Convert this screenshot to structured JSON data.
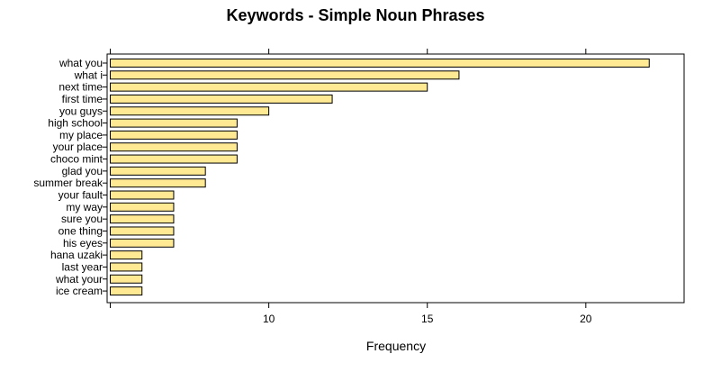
{
  "chart_data": {
    "type": "bar",
    "orientation": "horizontal",
    "title": "Keywords - Simple Noun Phrases",
    "xlabel": "Frequency",
    "ylabel": "",
    "categories": [
      "what you",
      "what i",
      "next time",
      "first time",
      "you guys",
      "high school",
      "my place",
      "your place",
      "choco mint",
      "glad you",
      "summer break",
      "your fault",
      "my way",
      "sure you",
      "one thing",
      "his eyes",
      "hana uzaki",
      "last year",
      "what your",
      "ice cream"
    ],
    "values": [
      22,
      16,
      15,
      12,
      10,
      9,
      9,
      9,
      9,
      8,
      8,
      7,
      7,
      7,
      7,
      7,
      6,
      6,
      6,
      6
    ],
    "xlim": [
      4.9,
      23.1
    ],
    "xticks": [
      5,
      10,
      15,
      20
    ],
    "xtick_labels": [
      "",
      "10",
      "15",
      "20"
    ],
    "bar_fill": "#ffe993",
    "bar_stroke": "#000000",
    "grid": false,
    "legend": "none"
  }
}
